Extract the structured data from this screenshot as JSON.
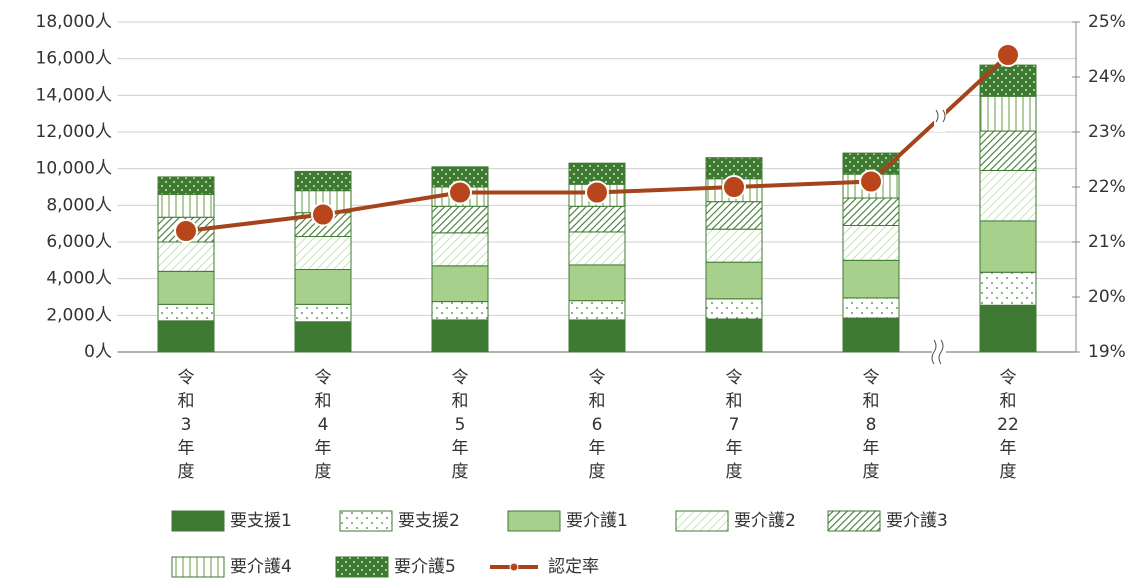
{
  "chart_data": {
    "type": "bar",
    "categories": [
      "令和3年度",
      "令和4年度",
      "令和5年度",
      "令和6年度",
      "令和7年度",
      "令和8年度",
      "令和22年度"
    ],
    "series": [
      {
        "name": "要支援1",
        "color": "#3f7a32",
        "values": [
          1700,
          1650,
          1750,
          1750,
          1800,
          1850,
          2550
        ]
      },
      {
        "name": "要支援2",
        "color": "#ffffff",
        "values": [
          900,
          950,
          1000,
          1050,
          1100,
          1100,
          1800
        ]
      },
      {
        "name": "要介護1",
        "color": "#a8d08d",
        "values": [
          1800,
          1900,
          1950,
          1950,
          2000,
          2050,
          2800
        ]
      },
      {
        "name": "要介護2",
        "color": "#eef5e6",
        "values": [
          1600,
          1800,
          1800,
          1800,
          1800,
          1900,
          2750
        ]
      },
      {
        "name": "要介護3",
        "color": "#4f8a3f",
        "values": [
          1350,
          1300,
          1450,
          1400,
          1500,
          1500,
          2150
        ]
      },
      {
        "name": "要介護4",
        "color": "#f3f8ee",
        "values": [
          1250,
          1200,
          1050,
          1200,
          1250,
          1300,
          1900
        ]
      },
      {
        "name": "要介護5",
        "color": "#3f7a32",
        "values": [
          950,
          1050,
          1100,
          1150,
          1150,
          1150,
          1700
        ]
      },
      {
        "name": "認定率",
        "type": "line",
        "axis": "y2",
        "color": "#a5441a",
        "values": [
          21.2,
          21.5,
          21.9,
          21.9,
          22.0,
          22.1,
          24.4
        ]
      }
    ],
    "ylim": [
      0,
      18000
    ],
    "yticks": [
      {
        "value": 0,
        "label": "0人"
      },
      {
        "value": 2000,
        "label": "2,000人"
      },
      {
        "value": 4000,
        "label": "4,000人"
      },
      {
        "value": 6000,
        "label": "6,000人"
      },
      {
        "value": 8000,
        "label": "8,000人"
      },
      {
        "value": 10000,
        "label": "10,000人"
      },
      {
        "value": 12000,
        "label": "12,000人"
      },
      {
        "value": 14000,
        "label": "14,000人"
      },
      {
        "value": 16000,
        "label": "16,000人"
      },
      {
        "value": 18000,
        "label": "18,000人"
      }
    ],
    "y2lim": [
      19,
      25
    ],
    "y2ticks": [
      {
        "value": 19,
        "label": "19%"
      },
      {
        "value": 20,
        "label": "20%"
      },
      {
        "value": 21,
        "label": "21%"
      },
      {
        "value": 22,
        "label": "22%"
      },
      {
        "value": 23,
        "label": "23%"
      },
      {
        "value": 24,
        "label": "24%"
      },
      {
        "value": 25,
        "label": "25%"
      }
    ],
    "grid": true,
    "stacked": true,
    "legend": "bottom"
  }
}
